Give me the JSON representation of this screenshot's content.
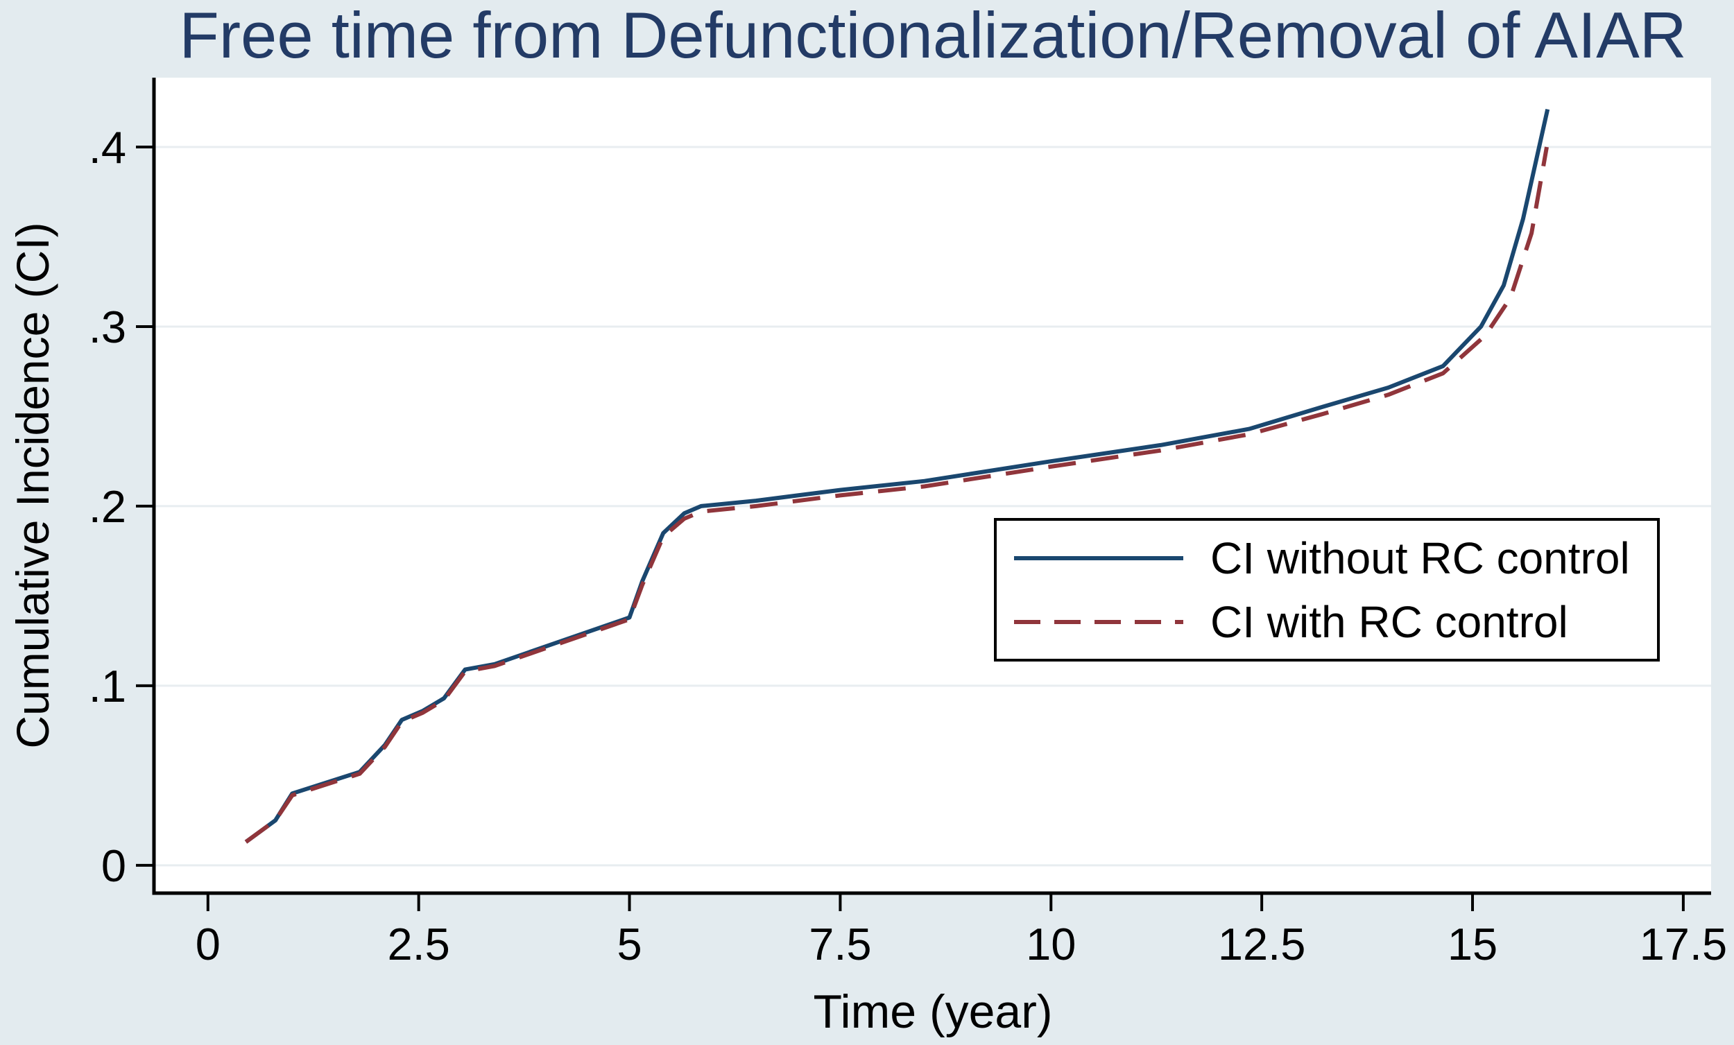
{
  "chart_data": {
    "type": "line",
    "title": "Free time from Defunctionalization/Removal of AIAR",
    "xlabel": "Time (year)",
    "ylabel": "Cumulative Incidence (CI)",
    "xticks": [
      0,
      2.5,
      5,
      7.5,
      10,
      12.5,
      15,
      17.5
    ],
    "xtick_labels": [
      "0",
      "2.5",
      "5",
      "7.5",
      "10",
      "12.5",
      "15",
      "17.5"
    ],
    "yticks": [
      0,
      0.1,
      0.2,
      0.3,
      0.4
    ],
    "ytick_labels": [
      "0",
      ".1",
      ".2",
      ".3",
      ".4"
    ],
    "xlim": [
      -0.64,
      17.83
    ],
    "ylim": [
      -0.0155,
      0.4386
    ],
    "grid": "horizontal",
    "legend": {
      "position": "inside-bottom-right"
    },
    "series": [
      {
        "name": "CI without RC control",
        "color": "#1a476f",
        "style": "solid",
        "points": [
          [
            0.45,
            0.013
          ],
          [
            0.8,
            0.025
          ],
          [
            1.0,
            0.04
          ],
          [
            1.8,
            0.052
          ],
          [
            2.1,
            0.067
          ],
          [
            2.3,
            0.081
          ],
          [
            2.55,
            0.086
          ],
          [
            2.8,
            0.093
          ],
          [
            3.05,
            0.109
          ],
          [
            3.4,
            0.112
          ],
          [
            4.2,
            0.125
          ],
          [
            5.0,
            0.138
          ],
          [
            5.15,
            0.158
          ],
          [
            5.4,
            0.185
          ],
          [
            5.65,
            0.196
          ],
          [
            5.85,
            0.2
          ],
          [
            6.5,
            0.203
          ],
          [
            7.5,
            0.209
          ],
          [
            8.5,
            0.214
          ],
          [
            10.0,
            0.225
          ],
          [
            11.3,
            0.234
          ],
          [
            12.35,
            0.243
          ],
          [
            13.2,
            0.255
          ],
          [
            14.0,
            0.266
          ],
          [
            14.65,
            0.278
          ],
          [
            15.1,
            0.3
          ],
          [
            15.37,
            0.323
          ],
          [
            15.6,
            0.36
          ],
          [
            15.89,
            0.421
          ]
        ]
      },
      {
        "name": "CI with RC control",
        "color": "#90353b",
        "style": "dashed",
        "points": [
          [
            0.45,
            0.013
          ],
          [
            0.8,
            0.025
          ],
          [
            1.0,
            0.039
          ],
          [
            1.8,
            0.051
          ],
          [
            2.1,
            0.066
          ],
          [
            2.3,
            0.08
          ],
          [
            2.55,
            0.085
          ],
          [
            2.8,
            0.092
          ],
          [
            3.05,
            0.108
          ],
          [
            3.4,
            0.111
          ],
          [
            4.2,
            0.124
          ],
          [
            5.0,
            0.137
          ],
          [
            5.15,
            0.156
          ],
          [
            5.4,
            0.183
          ],
          [
            5.65,
            0.193
          ],
          [
            5.85,
            0.197
          ],
          [
            6.5,
            0.2
          ],
          [
            7.5,
            0.206
          ],
          [
            8.5,
            0.211
          ],
          [
            10.0,
            0.222
          ],
          [
            11.3,
            0.231
          ],
          [
            12.35,
            0.24
          ],
          [
            13.2,
            0.251
          ],
          [
            14.0,
            0.262
          ],
          [
            14.65,
            0.274
          ],
          [
            15.15,
            0.295
          ],
          [
            15.45,
            0.316
          ],
          [
            15.7,
            0.352
          ],
          [
            15.88,
            0.4
          ]
        ]
      }
    ],
    "colors": {
      "background": "#e3ebef",
      "plot_background": "#ffffff",
      "gridline": "#e8edf0",
      "axis": "#000000",
      "title": "#233b66",
      "tick_label": "#000000"
    }
  }
}
